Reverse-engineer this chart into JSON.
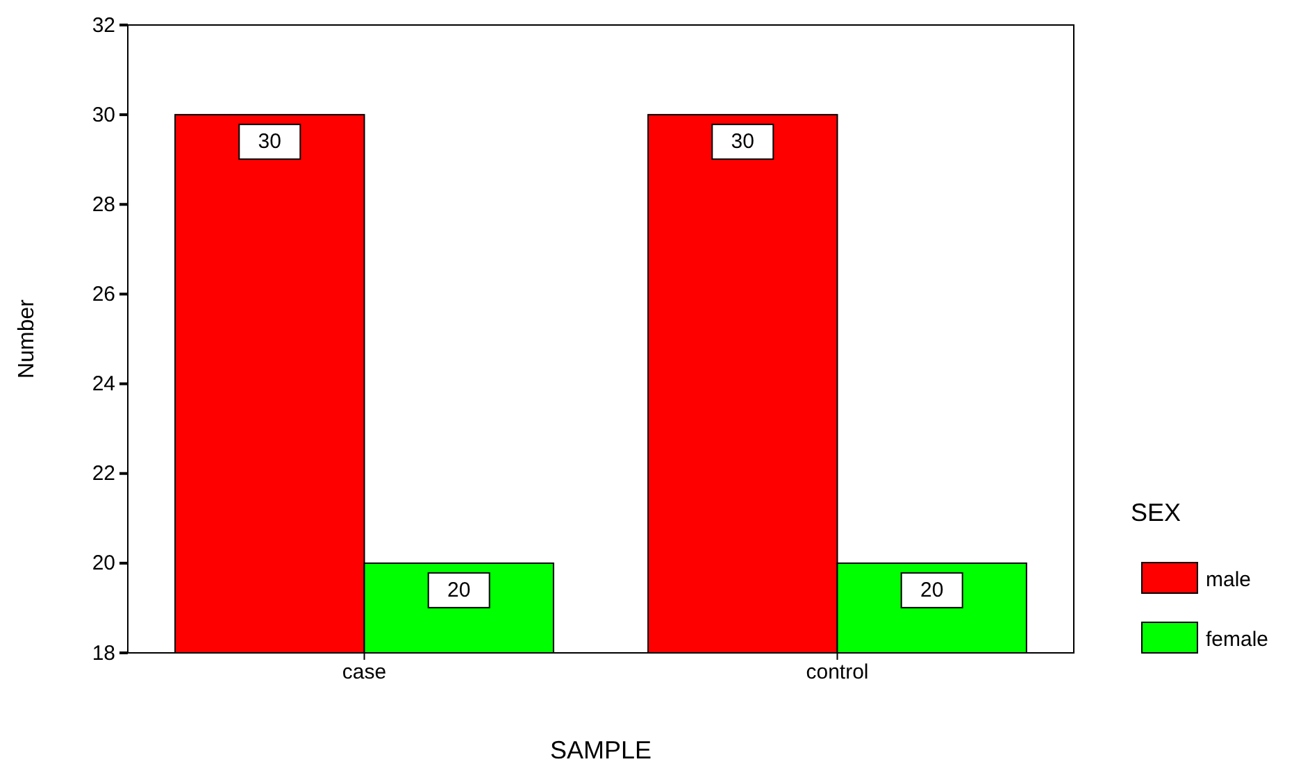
{
  "chart_data": {
    "type": "bar",
    "xlabel": "SAMPLE",
    "ylabel": "Number",
    "legend_title": "SEX",
    "categories": [
      "case",
      "control"
    ],
    "series": [
      {
        "name": "male",
        "color": "#ff0000",
        "values": [
          30,
          30
        ]
      },
      {
        "name": "female",
        "color": "#00ff00",
        "values": [
          20,
          20
        ]
      }
    ],
    "ylim": [
      18,
      32
    ],
    "yticks": [
      18,
      20,
      22,
      24,
      26,
      28,
      30,
      32
    ],
    "data_labels": true,
    "legend": "right",
    "grid": false
  }
}
